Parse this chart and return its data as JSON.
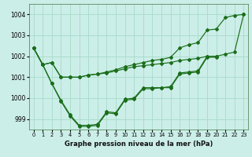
{
  "title": "Graphe pression niveau de la mer (hPa)",
  "bg_color": "#cceee8",
  "grid_color": "#aaddcc",
  "line_color": "#1a6e1a",
  "xlim": [
    -0.5,
    23.5
  ],
  "ylim": [
    998.5,
    1004.5
  ],
  "yticks": [
    999,
    1000,
    1001,
    1002,
    1003,
    1004
  ],
  "xticks": [
    0,
    1,
    2,
    3,
    4,
    5,
    6,
    7,
    8,
    9,
    10,
    11,
    12,
    13,
    14,
    15,
    16,
    17,
    18,
    19,
    20,
    21,
    22,
    23
  ],
  "s1": [
    1002.4,
    1001.6,
    1001.7,
    1001.0,
    1001.0,
    1001.0,
    1001.1,
    1001.15,
    1001.2,
    1001.3,
    1001.4,
    1001.5,
    1001.55,
    1001.6,
    1001.65,
    1001.7,
    1001.8,
    1001.85,
    1001.9,
    1002.0,
    1002.0,
    1002.1,
    1002.2,
    1004.0
  ],
  "s2": [
    1002.4,
    1001.6,
    1001.7,
    1001.0,
    1001.0,
    1001.0,
    1001.1,
    1001.15,
    1001.25,
    1001.35,
    1001.5,
    1001.6,
    1001.7,
    1001.8,
    1001.85,
    1001.95,
    1002.4,
    1002.55,
    1002.65,
    1003.25,
    1003.3,
    1003.85,
    1003.95,
    1004.0
  ],
  "s3_x": [
    0,
    1,
    2,
    3,
    4,
    5,
    6,
    7,
    8,
    9,
    10,
    11,
    12,
    13,
    14,
    15,
    16,
    17,
    18,
    19,
    20
  ],
  "s3": [
    1002.4,
    1001.6,
    1000.7,
    999.9,
    999.2,
    998.7,
    998.7,
    998.75,
    999.35,
    999.3,
    999.95,
    1000.0,
    1000.5,
    1000.5,
    1000.5,
    1000.55,
    1001.2,
    1001.25,
    1001.3,
    1002.0,
    1002.0
  ],
  "s4_x": [
    0,
    1,
    2,
    3,
    4,
    5,
    6,
    7,
    8,
    9,
    10,
    11,
    12,
    13,
    14,
    15,
    16,
    17,
    18,
    19,
    20
  ],
  "s4": [
    1002.4,
    1001.6,
    1000.7,
    999.85,
    999.15,
    998.65,
    998.65,
    998.7,
    999.3,
    999.25,
    999.9,
    999.95,
    1000.45,
    1000.45,
    1000.5,
    1000.5,
    1001.15,
    1001.2,
    1001.25,
    1001.95,
    1001.95
  ]
}
